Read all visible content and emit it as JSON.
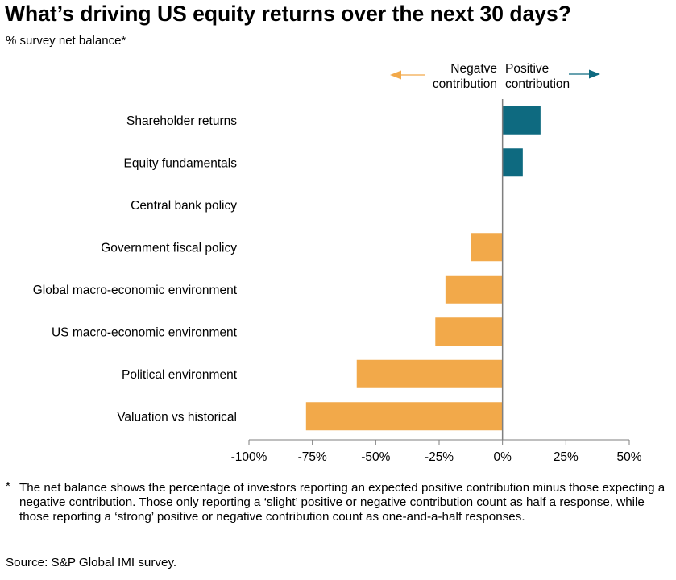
{
  "header": {
    "title": "What’s driving US equity returns over the next 30 days?",
    "subtitle": "% survey net balance*"
  },
  "legend": {
    "negative": [
      "Negatve",
      "contribution"
    ],
    "positive": [
      "Positive",
      "contribution"
    ],
    "negative_color": "#f2a94a",
    "positive_color": "#0e6a80"
  },
  "chart_data": {
    "type": "bar",
    "orientation": "horizontal",
    "categories": [
      "Shareholder returns",
      "Equity fundamentals",
      "Central bank policy",
      "Government fiscal policy",
      "Global macro-economic environment",
      "US macro-economic environment",
      "Political environment",
      "Valuation vs historical"
    ],
    "values": [
      15,
      8,
      0,
      -12.5,
      -22.5,
      -26.5,
      -57.5,
      -77.5
    ],
    "xlim": [
      -100,
      50
    ],
    "xticks": [
      -100,
      -75,
      -50,
      -25,
      0,
      25,
      50
    ],
    "xtick_labels": [
      "-100%",
      "-75%",
      "-50%",
      "-25%",
      "0%",
      "25%",
      "50%"
    ],
    "grid": false,
    "legend_position": "top"
  },
  "footnote": {
    "marker": "*",
    "text": "The net balance shows the percentage of investors reporting an expected positive contribution minus those expecting a negative contribution. Those only reporting a ‘slight’ positive or negative contribution count as half a response, while those reporting a ‘strong’ positive or negative contribution count as one-and-a-half responses."
  },
  "source": "Source: S&P Global IMI survey."
}
